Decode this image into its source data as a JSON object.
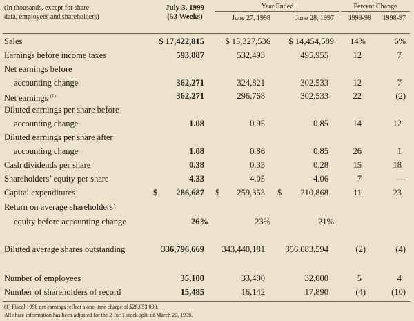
{
  "header": {
    "unit_note_line1": "(In thousands, except for share",
    "unit_note_line2": "data, employees and shareholders)",
    "col_current_line1": "July 3, 1999",
    "col_current_line2": "(53 Weeks)",
    "year_ended_label": "Year Ended",
    "col_1998": "June 27, 1998",
    "col_1997": "June 28, 1997",
    "percent_change_label": "Percent Change",
    "pct_col_a": "1999-98",
    "pct_col_b": "1998-97"
  },
  "rows": {
    "sales": {
      "label": "Sales",
      "v1999": "$ 17,422,815",
      "v1998": "$ 15,327,536",
      "v1997": "$ 14,454,589",
      "pa": "14%",
      "pb": "6%"
    },
    "ebit": {
      "label": "Earnings before income taxes",
      "v1999": "593,887",
      "v1998": "532,493",
      "v1997": "495,955",
      "pa": "12",
      "pb": "7"
    },
    "net_before_l1": {
      "label": "Net earnings before"
    },
    "net_before_l2": {
      "label": "accounting change",
      "v1999": "362,271",
      "v1998": "324,821",
      "v1997": "302,533",
      "pa": "12",
      "pb": "7"
    },
    "net_earnings": {
      "label": "Net earnings",
      "footnote_mark": "(1)",
      "v1999": "362,271",
      "v1998": "296,768",
      "v1997": "302,533",
      "pa": "22",
      "pb": "(2)"
    },
    "deps_before_l1": {
      "label": "Diluted earnings per share before"
    },
    "deps_before_l2": {
      "label": "accounting change",
      "v1999": "1.08",
      "v1998": "0.95",
      "v1997": "0.85",
      "pa": "14",
      "pb": "12"
    },
    "deps_after_l1": {
      "label": "Diluted earnings per share after"
    },
    "deps_after_l2": {
      "label": "accounting change",
      "v1999": "1.08",
      "v1998": "0.86",
      "v1997": "0.85",
      "pa": "26",
      "pb": "1"
    },
    "dividends": {
      "label": "Cash dividends per share",
      "v1999": "0.38",
      "v1998": "0.33",
      "v1997": "0.28",
      "pa": "15",
      "pb": "18"
    },
    "equity": {
      "label": "Shareholders’ equity per share",
      "v1999": "4.33",
      "v1998": "4.05",
      "v1997": "4.06",
      "pa": "7",
      "pb": "—"
    },
    "capex": {
      "label": "Capital expenditures",
      "sym": "$",
      "v1999": "286,687",
      "v1998": "259,353",
      "v1997": "210,868",
      "pa": "11",
      "pb": "23"
    },
    "roe_l1": {
      "label": "Return on average shareholders’"
    },
    "roe_l2": {
      "label": "equity before accounting change",
      "v1999": "26%",
      "v1998": "23%",
      "v1997": "21%"
    },
    "shares": {
      "label": "Diluted average shares outstanding",
      "v1999": "336,796,669",
      "v1998": "343,440,181",
      "v1997": "356,083,594",
      "pa": "(2)",
      "pb": "(4)"
    },
    "employees": {
      "label": "Number of employees",
      "v1999": "35,100",
      "v1998": "33,400",
      "v1997": "32,000",
      "pa": "5",
      "pb": "4"
    },
    "shareholders": {
      "label": "Number of shareholders of record",
      "v1999": "15,485",
      "v1998": "16,142",
      "v1997": "17,890",
      "pa": "(4)",
      "pb": "(10)"
    }
  },
  "footnotes": {
    "note1": "(1)  Fiscal 1998 net earnings reflect a one-time charge of $28,053,000.",
    "note2": "All share information has been adjusted for the 2-for-1 stock split of March 20, 1998."
  }
}
